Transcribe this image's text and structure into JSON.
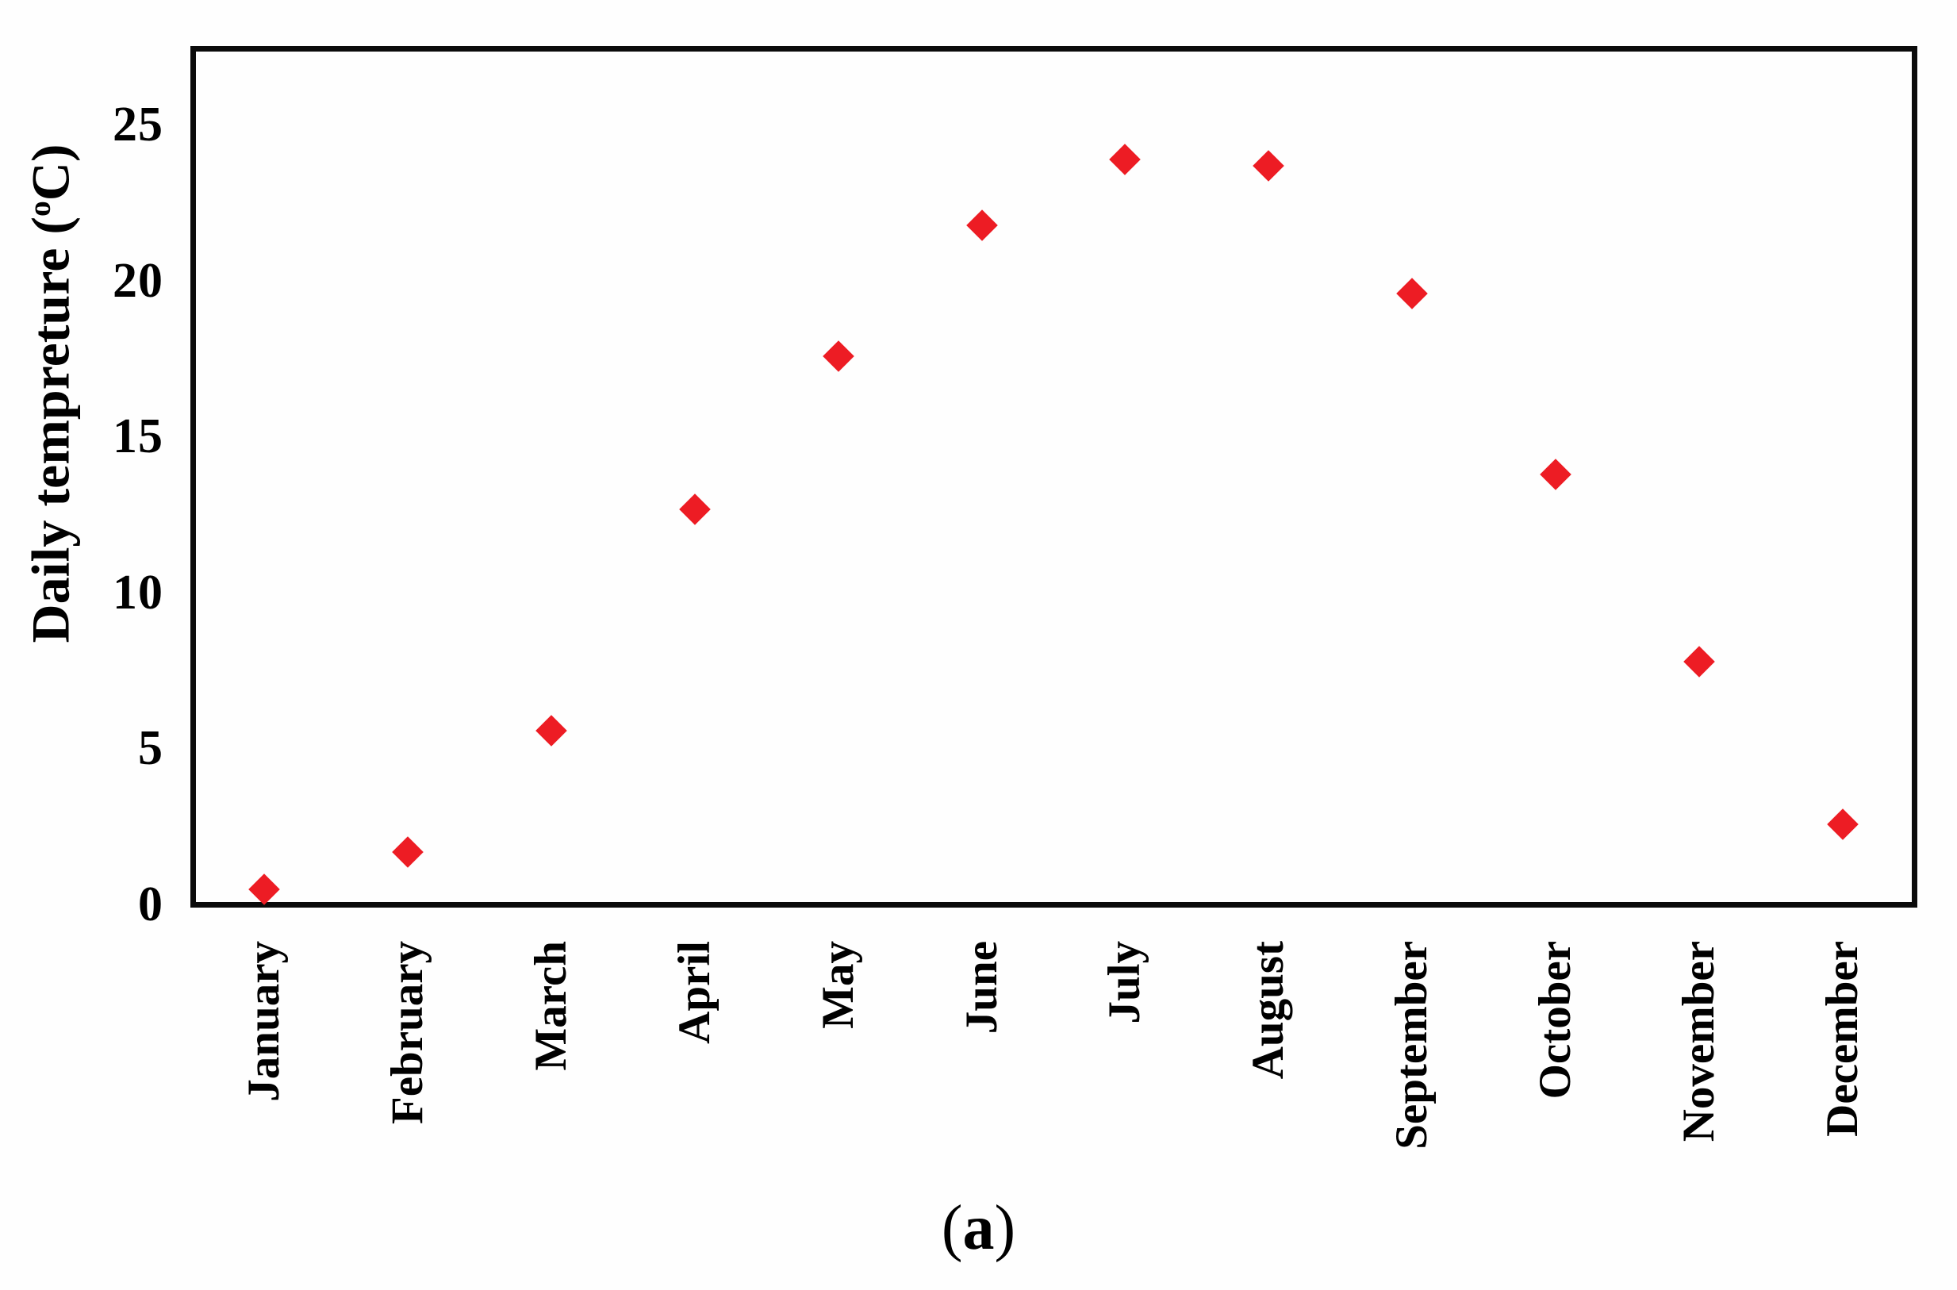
{
  "figure": {
    "caption": {
      "open": "(",
      "letter": "a",
      "close": ")"
    }
  },
  "chart_data": {
    "type": "scatter",
    "title": "",
    "xlabel": "",
    "ylabel": "Daily tempreture (oC)",
    "ylabel_parts": {
      "prefix": "Daily tempreture (",
      "superscript": "o",
      "suffix": "C)"
    },
    "categories": [
      "January",
      "February",
      "March",
      "April",
      "May",
      "June",
      "July",
      "August",
      "September",
      "October",
      "November",
      "December"
    ],
    "series": [
      {
        "name": "Daily temperature",
        "values": [
          0.5,
          1.7,
          5.6,
          12.7,
          17.6,
          21.8,
          23.9,
          23.7,
          19.6,
          13.8,
          7.8,
          2.6
        ]
      }
    ],
    "ylim": [
      0,
      27.5
    ],
    "yticks": [
      0,
      5,
      10,
      15,
      20,
      25
    ],
    "grid_visible": false,
    "legend_visible": false,
    "marker": {
      "shape": "diamond",
      "color": "#ed1c24"
    },
    "frame_color": "#0b0b0b",
    "background_color": "#fefefe"
  }
}
